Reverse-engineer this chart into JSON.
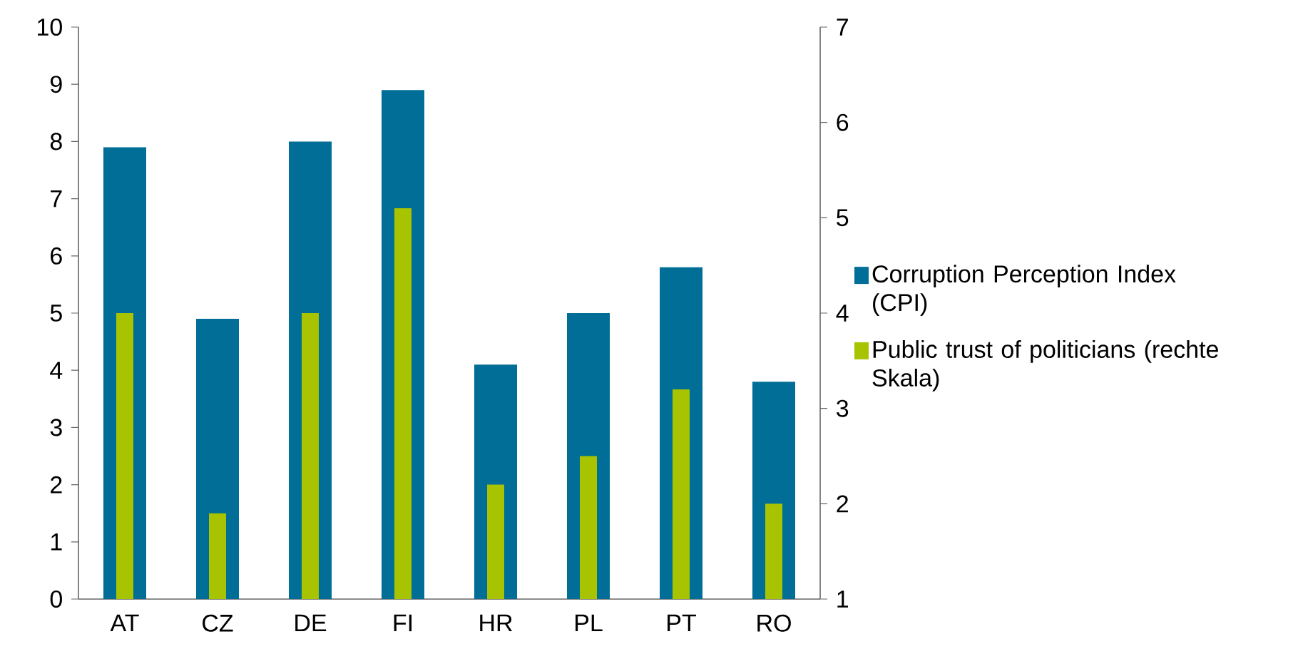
{
  "chart_data": {
    "type": "bar",
    "categories": [
      "AT",
      "CZ",
      "DE",
      "FI",
      "HR",
      "PL",
      "PT",
      "RO"
    ],
    "series": [
      {
        "name": "Corruption Perception Index (CPI)",
        "color": "#006e96",
        "values": [
          7.9,
          4.9,
          8.0,
          8.9,
          4.1,
          5.0,
          5.8,
          3.8
        ]
      },
      {
        "name": "Public trust of politicians (rechte Skala)",
        "color": "#a8c400",
        "axis": "y2",
        "values": [
          4.0,
          1.9,
          4.0,
          5.1,
          2.2,
          2.5,
          3.2,
          2.0
        ]
      }
    ],
    "ylim": [
      0,
      10
    ],
    "yticks": [
      0,
      1,
      2,
      3,
      4,
      5,
      6,
      7,
      8,
      9,
      10
    ],
    "y2lim": [
      1,
      7
    ],
    "y2ticks": [
      1,
      2,
      3,
      4,
      5,
      6,
      7
    ],
    "legend": "right"
  }
}
